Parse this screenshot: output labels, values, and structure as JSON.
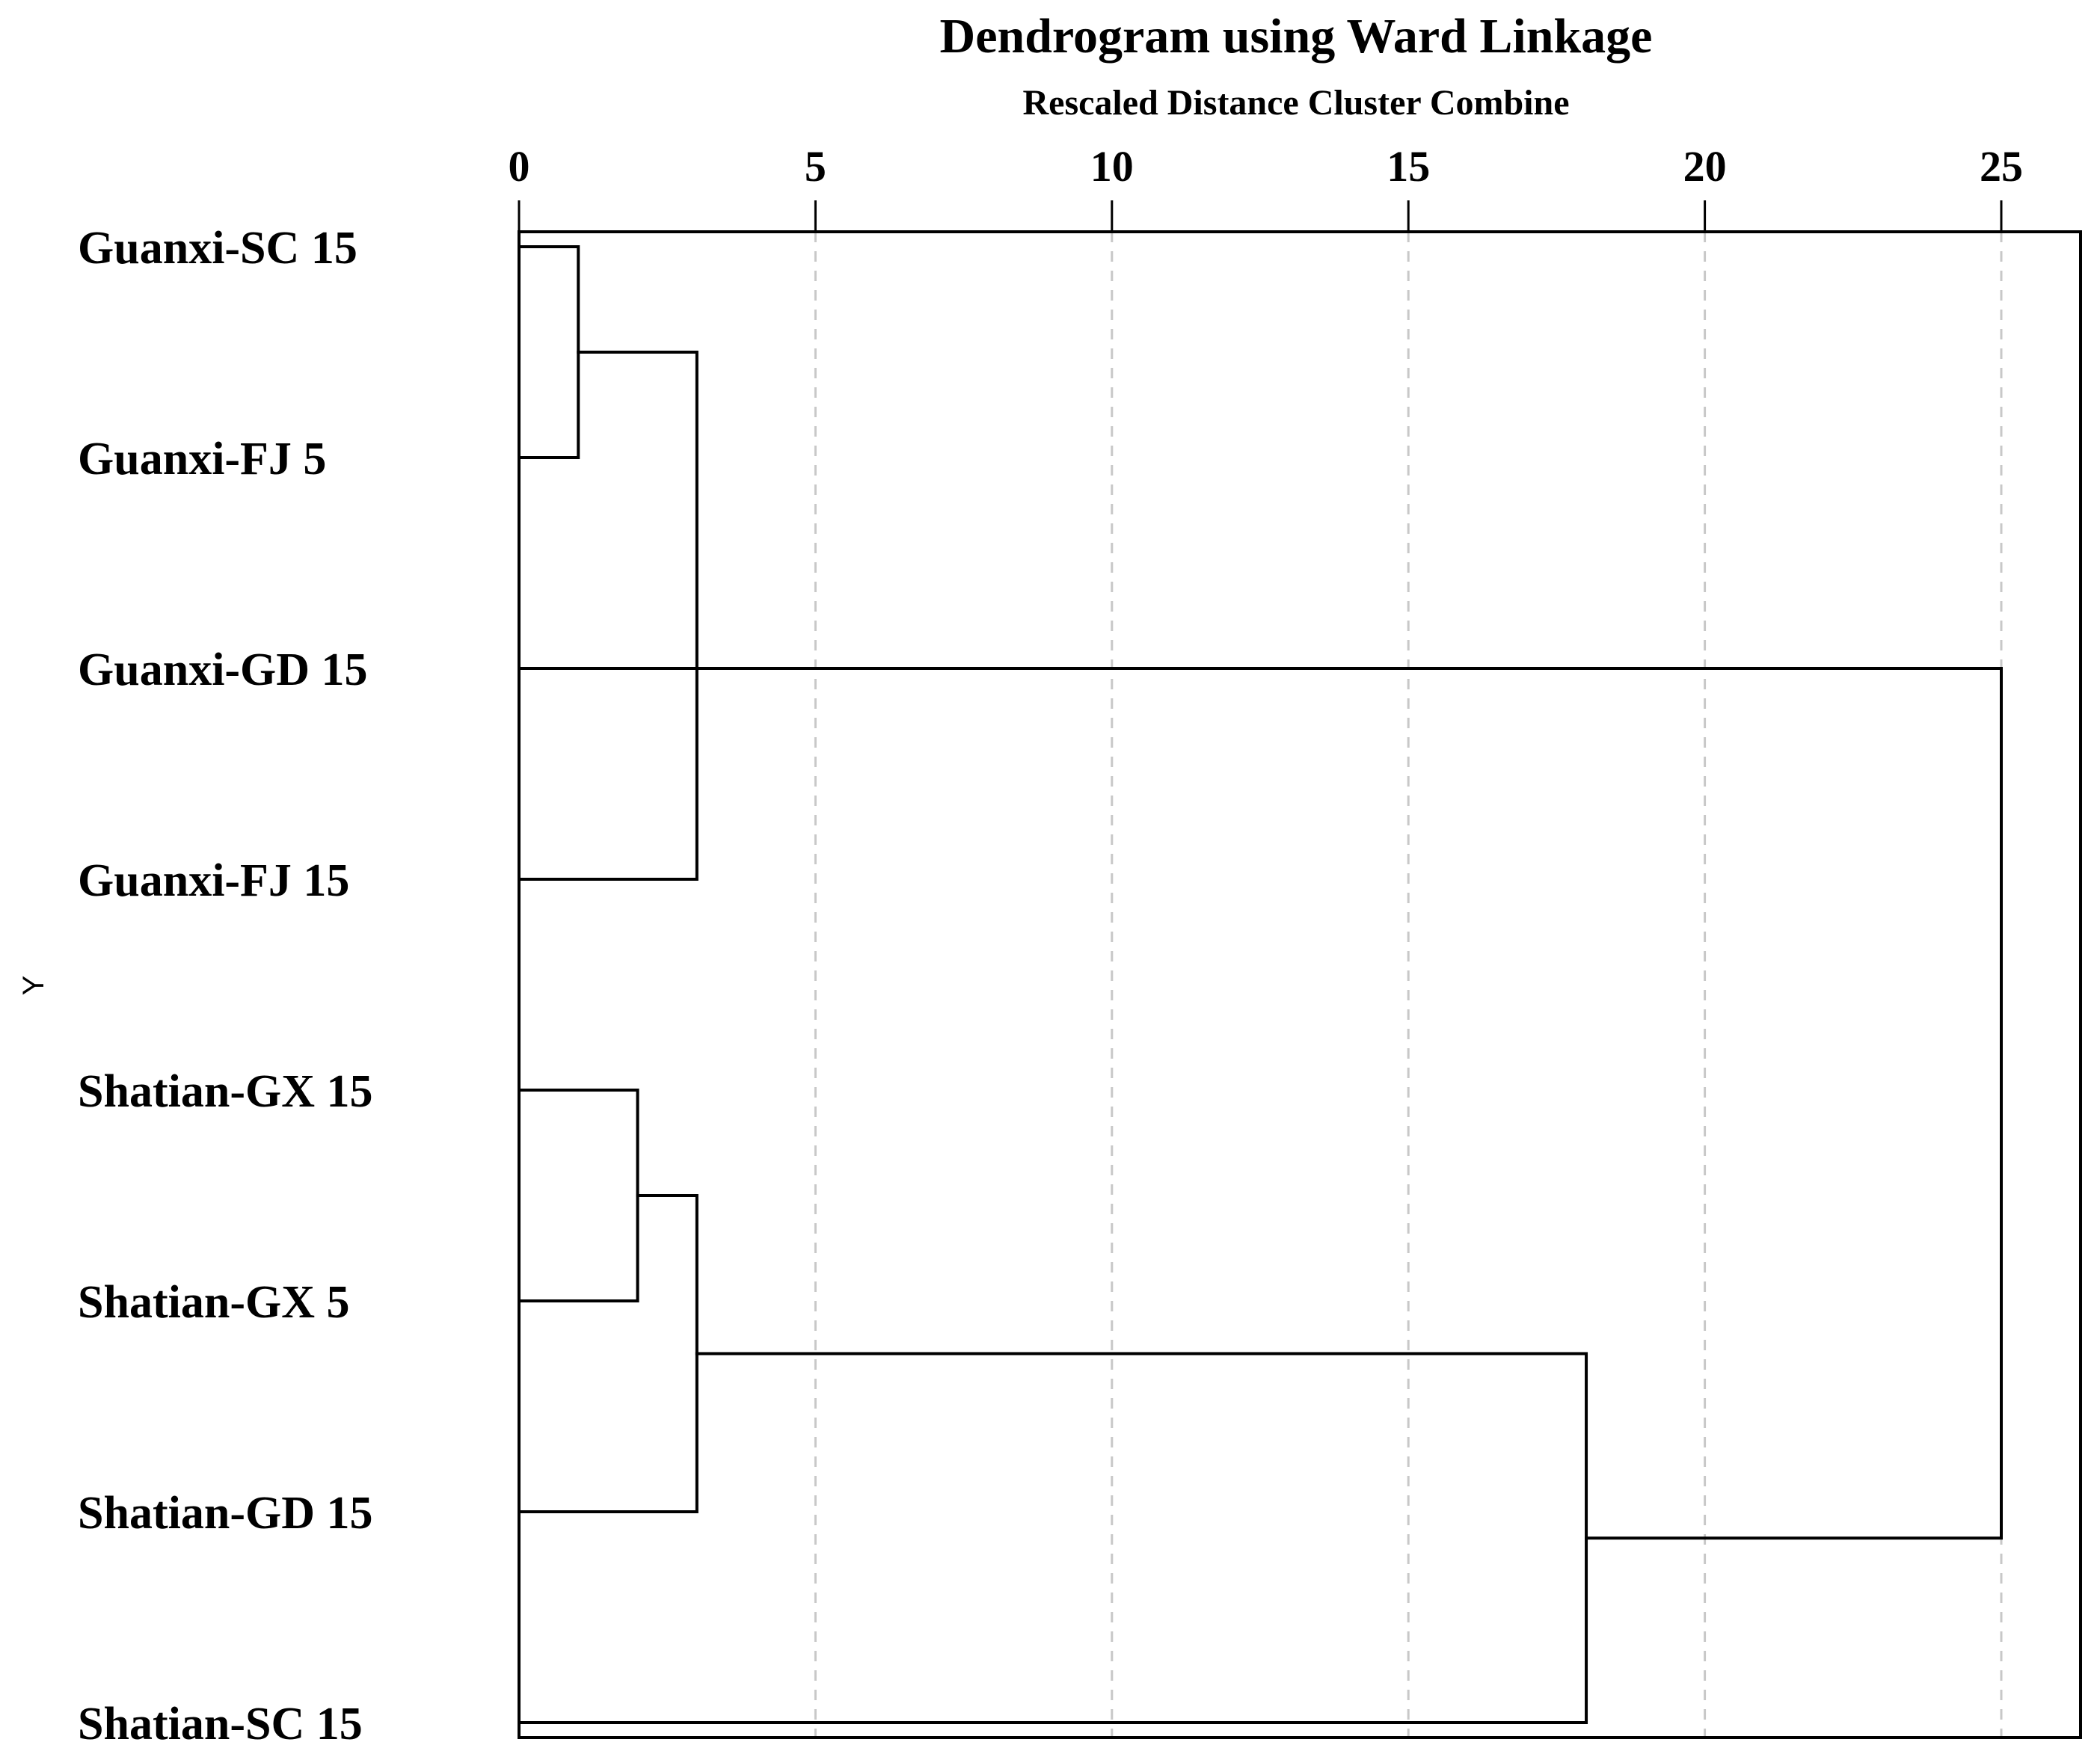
{
  "chart_data": {
    "type": "dendrogram",
    "title": "Dendrogram using Ward Linkage",
    "subtitle": "Rescaled Distance Cluster Combine",
    "ylabel": "Y",
    "xlim": [
      0,
      25
    ],
    "x_ticks": [
      0,
      5,
      10,
      15,
      20,
      25
    ],
    "grid": "vertical dashed",
    "leaves": [
      "Guanxi-SC 15",
      "Guanxi-FJ 5",
      "Guanxi-GD 15",
      "Guanxi-FJ 15",
      "Shatian-GX 15",
      "Shatian-GX 5",
      "Shatian-GD 15",
      "Shatian-SC 15"
    ],
    "merges": [
      {
        "id": "c1",
        "children": [
          "Guanxi-SC 15",
          "Guanxi-FJ 5"
        ],
        "distance": 1
      },
      {
        "id": "c2",
        "children": [
          "Shatian-GX 15",
          "Shatian-GX 5"
        ],
        "distance": 2
      },
      {
        "id": "c3",
        "children": [
          "c1",
          "Guanxi-FJ 15"
        ],
        "distance": 3
      },
      {
        "id": "c4",
        "children": [
          "c2",
          "Shatian-GD 15"
        ],
        "distance": 3
      },
      {
        "id": "c5",
        "children": [
          "c4",
          "Shatian-SC 15"
        ],
        "distance": 18
      },
      {
        "id": "c6",
        "children": [
          "Guanxi-GD 15",
          "c5"
        ],
        "distance": 25
      }
    ]
  }
}
